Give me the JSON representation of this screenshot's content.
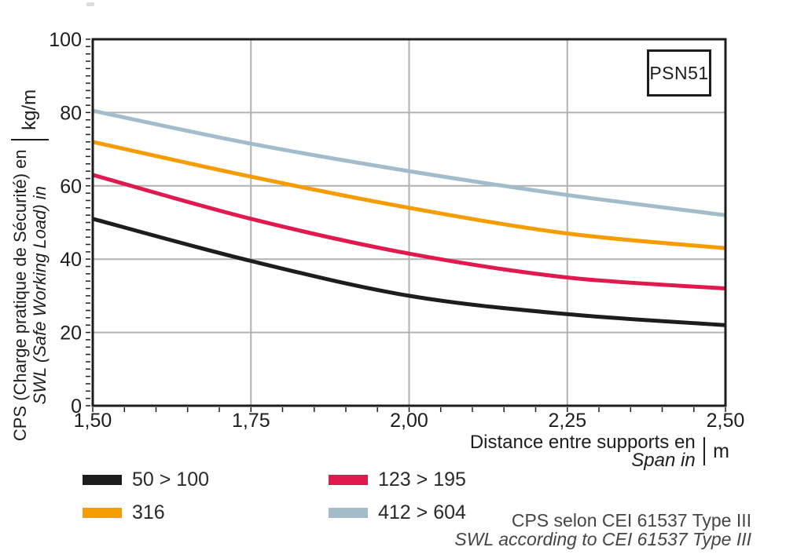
{
  "badge": {
    "label": "PSN51"
  },
  "axes": {
    "y": {
      "line1": "CPS (Charge pratique de Sécurité) en",
      "line2": "SWL (Safe Working Load) in",
      "unit": "kg/m"
    },
    "x": {
      "line1": "Distance entre supports en",
      "line2": "Span in",
      "unit": "m"
    }
  },
  "legend": {
    "items": [
      {
        "label": "50 > 100",
        "color": "#1d1d1b"
      },
      {
        "label": "316",
        "color": "#f59c00"
      },
      {
        "label": "123 > 195",
        "color": "#e0194e"
      },
      {
        "label": "412 > 604",
        "color": "#a3bcca"
      }
    ]
  },
  "footnote": {
    "line1": "CPS selon CEI 61537 Type III",
    "line2": "SWL according to CEI 61537 Type III"
  },
  "chart_data": {
    "type": "line",
    "title": "PSN51 safe working load vs span",
    "xlabel": "Distance entre supports en / Span in (m)",
    "ylabel": "CPS (Charge pratique de Sécurité) / SWL (Safe Working Load) in kg/m",
    "x": [
      1.5,
      1.75,
      2.0,
      2.25,
      2.5
    ],
    "x_tick_labels": [
      "1,50",
      "1,75",
      "2,00",
      "2,25",
      "2,50"
    ],
    "y_ticks": [
      0,
      20,
      40,
      60,
      80,
      100
    ],
    "xlim": [
      1.5,
      2.5
    ],
    "ylim": [
      0,
      100
    ],
    "x_gridlines": [
      1.75,
      2.0,
      2.25
    ],
    "y_gridlines": [
      20,
      40,
      60,
      80
    ],
    "x_minor_step": 0.05,
    "y_minor_step": 2,
    "grid_on": true,
    "legend_position": "bottom",
    "grid_color": "#b1b1b1",
    "axis_color": "#1d1d1b",
    "series": [
      {
        "name": "50 > 100",
        "color": "#1d1d1b",
        "values": [
          51.0,
          39.5,
          30.0,
          25.0,
          22.0
        ]
      },
      {
        "name": "123 > 195",
        "color": "#e0194e",
        "values": [
          63.0,
          51.0,
          41.5,
          35.0,
          32.0
        ]
      },
      {
        "name": "316",
        "color": "#f59c00",
        "values": [
          72.0,
          62.5,
          54.0,
          47.0,
          43.0
        ]
      },
      {
        "name": "412 > 604",
        "color": "#a3bcca",
        "values": [
          80.5,
          71.5,
          64.0,
          57.5,
          52.0
        ]
      }
    ]
  }
}
